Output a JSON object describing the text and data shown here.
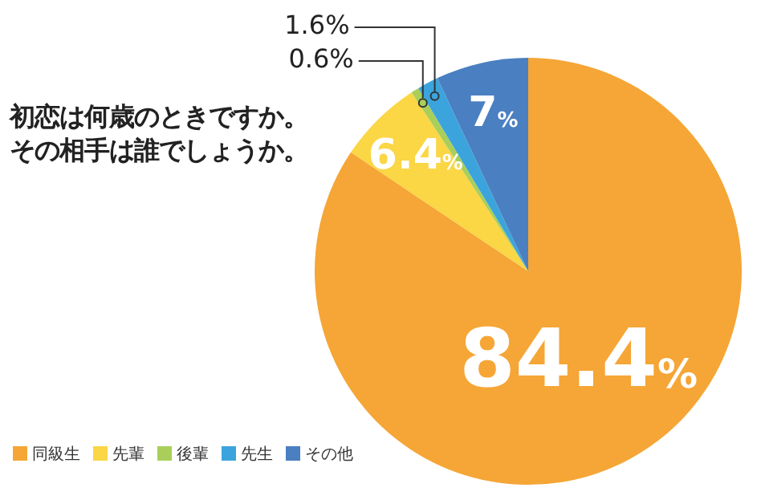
{
  "chart_data": {
    "type": "pie",
    "title": "初恋は何歳のときですか。その相手は誰でしょうか。",
    "categories": [
      "同級生",
      "先輩",
      "後輩",
      "先生",
      "その他"
    ],
    "values": [
      84.4,
      6.4,
      0.6,
      1.6,
      7
    ],
    "colors": [
      "#f5a636",
      "#fbd645",
      "#a9cf5a",
      "#3ca4dc",
      "#4a7fc1"
    ],
    "value_labels": [
      "84.4%",
      "6.4%",
      "0.6%",
      "1.6%",
      "7%"
    ],
    "legend": "bottom left"
  }
}
